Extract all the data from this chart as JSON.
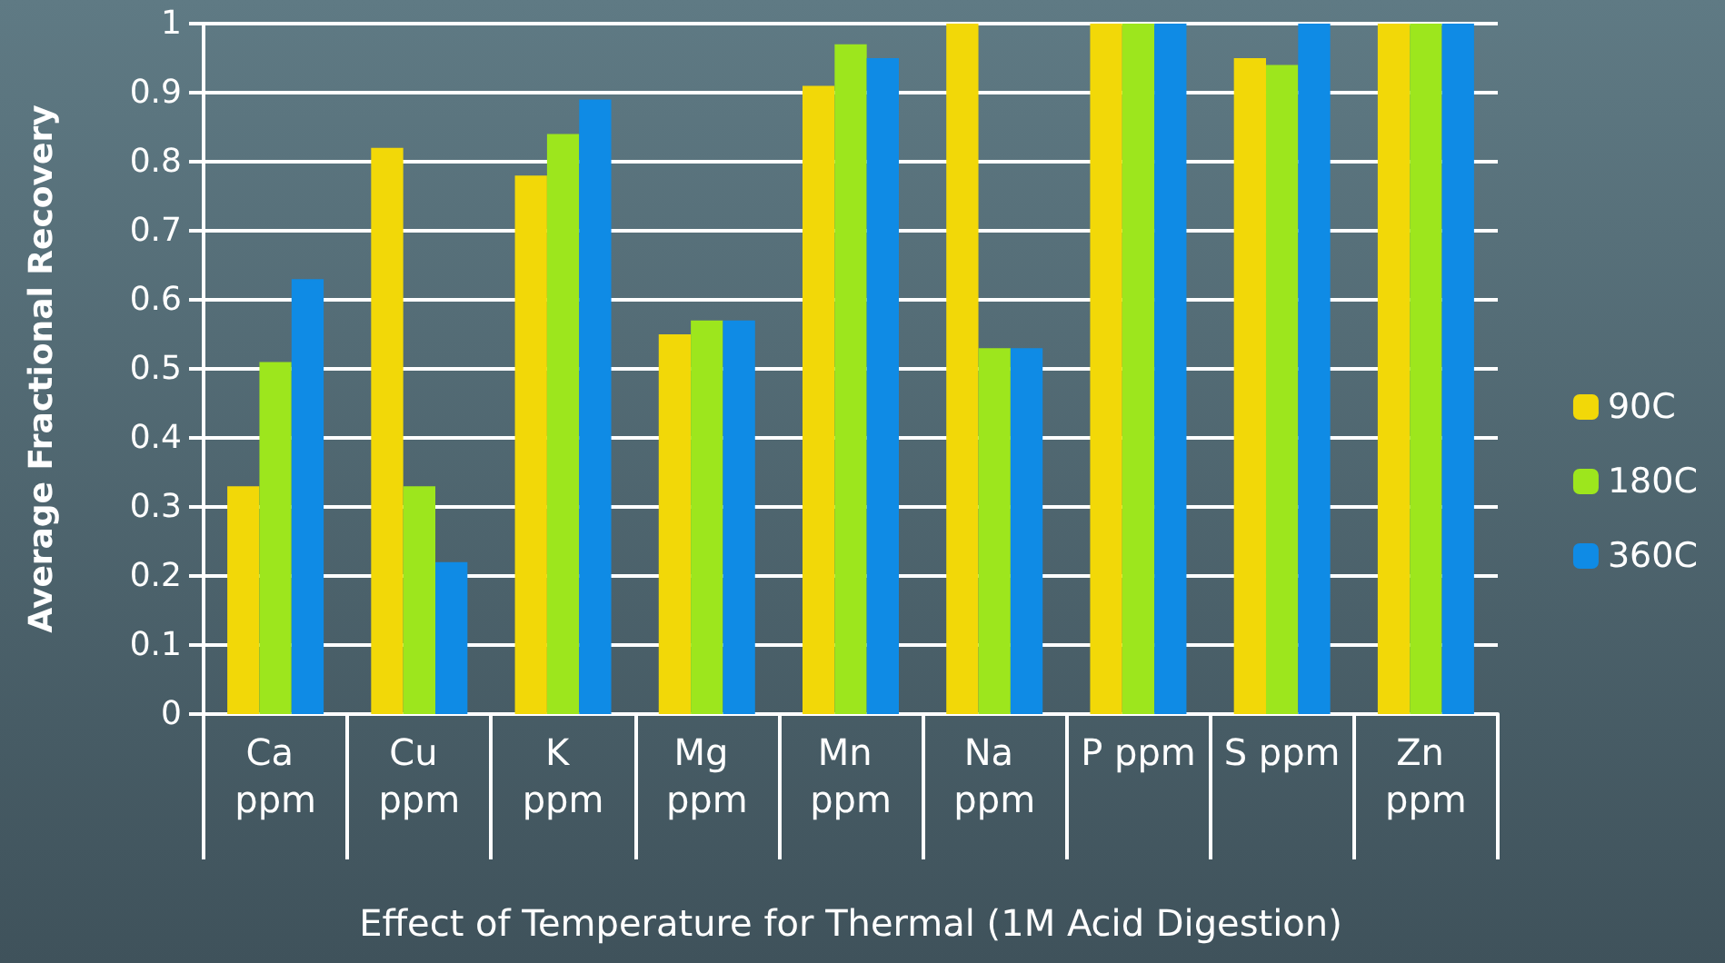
{
  "chart_data": {
    "type": "bar",
    "xlabel": "Effect of Temperature for Thermal (1M Acid Digestion)",
    "ylabel": "Average Fractional Recovery",
    "categories": [
      "Ca ppm",
      "Cu ppm",
      "K ppm",
      "Mg ppm",
      "Mn ppm",
      "Na ppm",
      "P ppm",
      "S ppm",
      "Zn ppm"
    ],
    "series": [
      {
        "name": "90C",
        "color": "#f2d808",
        "values": [
          0.33,
          0.82,
          0.78,
          0.55,
          0.91,
          1,
          1,
          0.95,
          1
        ]
      },
      {
        "name": "180C",
        "color": "#9de61d",
        "values": [
          0.51,
          0.33,
          0.84,
          0.57,
          0.97,
          0.53,
          1,
          0.94,
          1
        ]
      },
      {
        "name": "360C",
        "color": "#0f8be5",
        "values": [
          0.63,
          0.22,
          0.89,
          0.57,
          0.95,
          0.53,
          1,
          1,
          1
        ]
      }
    ],
    "ylim": [
      0,
      1
    ],
    "yticks": [
      0,
      0.1,
      0.2,
      0.3,
      0.4,
      0.5,
      0.6,
      0.7,
      0.8,
      0.9,
      1
    ],
    "grid": "y",
    "legend": "right"
  }
}
